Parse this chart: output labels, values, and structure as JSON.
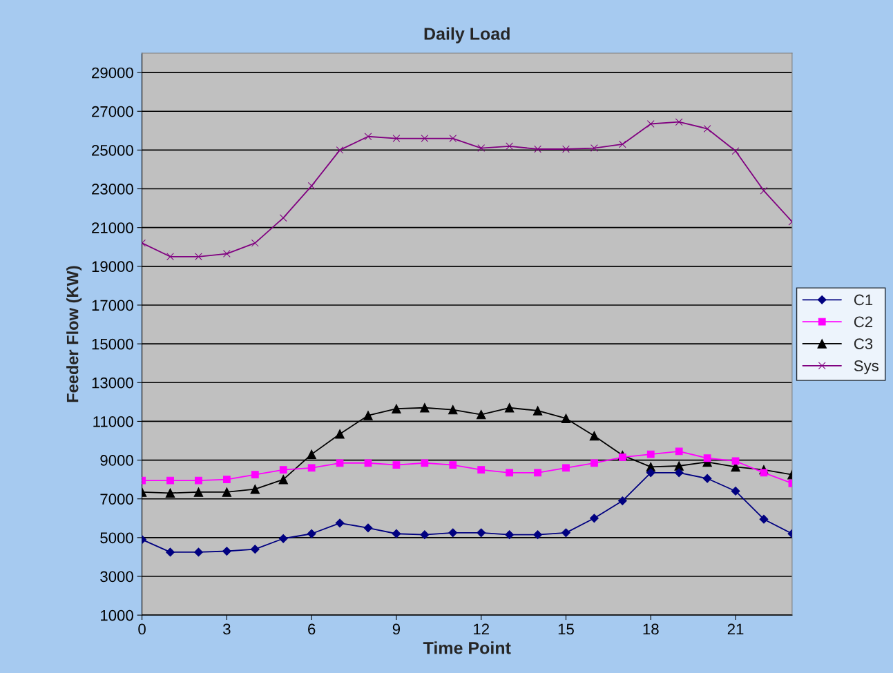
{
  "chart_data": {
    "type": "line",
    "title": "Daily Load",
    "xlabel": "Time Point",
    "ylabel": "Feeder Flow (KW)",
    "x": [
      0,
      1,
      2,
      3,
      4,
      5,
      6,
      7,
      8,
      9,
      10,
      11,
      12,
      13,
      14,
      15,
      16,
      17,
      18,
      19,
      20,
      21,
      22,
      23
    ],
    "xlim": [
      0,
      23
    ],
    "xticks": [
      0,
      3,
      6,
      9,
      12,
      15,
      18,
      21
    ],
    "ylim": [
      1000,
      30000
    ],
    "yticks": [
      1000,
      3000,
      5000,
      7000,
      9000,
      11000,
      13000,
      15000,
      17000,
      19000,
      21000,
      23000,
      25000,
      27000,
      29000
    ],
    "grid": "y",
    "legend": "right",
    "series": [
      {
        "name": "C1",
        "color": "#000080",
        "marker": "diamond",
        "values": [
          4900,
          4250,
          4250,
          4300,
          4400,
          4950,
          5200,
          5750,
          5500,
          5200,
          5150,
          5250,
          5250,
          5150,
          5150,
          5250,
          6000,
          6900,
          8350,
          8350,
          8050,
          7400,
          5950,
          5200
        ]
      },
      {
        "name": "C2",
        "color": "#ff00ff",
        "marker": "square",
        "values": [
          7950,
          7950,
          7950,
          8000,
          8250,
          8500,
          8600,
          8850,
          8850,
          8750,
          8850,
          8750,
          8500,
          8350,
          8350,
          8600,
          8850,
          9150,
          9300,
          9450,
          9100,
          8950,
          8350,
          7800
        ]
      },
      {
        "name": "C3",
        "color": "#000000",
        "marker": "triangle",
        "values": [
          7350,
          7300,
          7350,
          7350,
          7500,
          8000,
          9300,
          10350,
          11300,
          11650,
          11700,
          11600,
          11350,
          11700,
          11550,
          11150,
          10250,
          9250,
          8650,
          8700,
          8900,
          8650,
          8500,
          8250
        ]
      },
      {
        "name": "Sys",
        "color": "#800080",
        "marker": "cross",
        "values": [
          20200,
          19500,
          19500,
          19650,
          20200,
          21500,
          23150,
          25000,
          25700,
          25600,
          25600,
          25600,
          25100,
          25200,
          25050,
          25050,
          25100,
          25300,
          26350,
          26450,
          26100,
          24950,
          22900,
          21300
        ]
      }
    ]
  }
}
